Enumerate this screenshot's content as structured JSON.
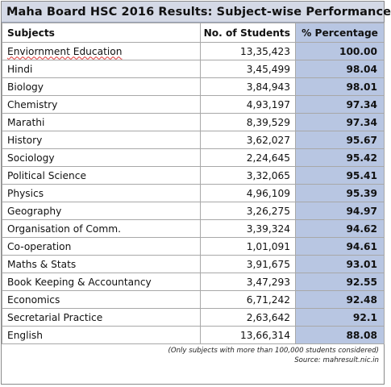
{
  "chart_data": {
    "type": "table",
    "title": "Maha Board HSC 2016 Results: Subject-wise  Performance",
    "columns": [
      "Subjects",
      "No. of Students",
      "% Percentage"
    ],
    "rows": [
      {
        "subject": "Enviornment Education",
        "students": "13,35,423",
        "percentage": "100.00"
      },
      {
        "subject": "Hindi",
        "students": "3,45,499",
        "percentage": "98.04"
      },
      {
        "subject": "Biology",
        "students": "3,84,943",
        "percentage": "98.01"
      },
      {
        "subject": "Chemistry",
        "students": "4,93,197",
        "percentage": "97.34"
      },
      {
        "subject": "Marathi",
        "students": "8,39,529",
        "percentage": "97.34"
      },
      {
        "subject": "History",
        "students": "3,62,027",
        "percentage": "95.67"
      },
      {
        "subject": "Sociology",
        "students": "2,24,645",
        "percentage": "95.42"
      },
      {
        "subject": "Political Science",
        "students": "3,32,065",
        "percentage": "95.41"
      },
      {
        "subject": "Physics",
        "students": "4,96,109",
        "percentage": "95.39"
      },
      {
        "subject": "Geography",
        "students": "3,26,275",
        "percentage": "94.97"
      },
      {
        "subject": "Organisation of Comm.",
        "students": "3,39,324",
        "percentage": "94.62"
      },
      {
        "subject": "Co-operation",
        "students": "1,01,091",
        "percentage": "94.61"
      },
      {
        "subject": "Maths & Stats",
        "students": "3,91,675",
        "percentage": "93.01"
      },
      {
        "subject": "Book Keeping & Accountancy",
        "students": "3,47,293",
        "percentage": "92.55"
      },
      {
        "subject": "Economics",
        "students": "6,71,242",
        "percentage": "92.48"
      },
      {
        "subject": "Secretarial Practice",
        "students": "2,63,642",
        "percentage": "92.1"
      },
      {
        "subject": "English",
        "students": "13,66,314",
        "percentage": "88.08"
      }
    ],
    "notes": [
      "(Only subjects with more than 100,000 students considered)",
      "Source: mahresult.nic.in"
    ]
  },
  "colors": {
    "title_background": "#d4d9e6",
    "percentage_column": "#b8c6e2",
    "grid_lines": "#a8a8a8"
  }
}
